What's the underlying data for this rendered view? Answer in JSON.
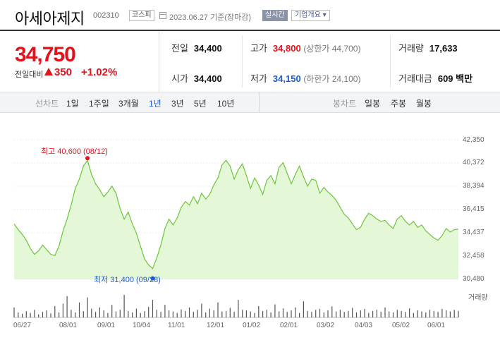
{
  "header": {
    "stock_name": "아세아제지",
    "stock_code": "002310",
    "market": "코스피",
    "date_text": "2023.06.27 기준(장마감)",
    "realtime_label": "실시간",
    "company_label": "기업개요 ▾"
  },
  "price": {
    "current": "34,750",
    "diff_label": "전일대비",
    "diff_value": "350",
    "diff_pct": "+1.02%"
  },
  "info": {
    "prev_label": "전일",
    "prev_value": "34,400",
    "open_label": "시가",
    "open_value": "34,400",
    "high_label": "고가",
    "high_value": "34,800",
    "high_sub": "(상한가 44,700)",
    "low_label": "저가",
    "low_value": "34,150",
    "low_sub": "(하한가 24,100)",
    "vol_label": "거래량",
    "vol_value": "17,633",
    "amount_label": "거래대금",
    "amount_value": "609 백만"
  },
  "periods": {
    "line_title": "선차트",
    "line_items": [
      "1일",
      "1주일",
      "3개월",
      "1년",
      "3년",
      "5년",
      "10년"
    ],
    "active": "1년",
    "candle_title": "봉차트",
    "candle_items": [
      "일봉",
      "주봉",
      "월봉"
    ]
  },
  "colors": {
    "up": "#e4131b",
    "down": "#1a5bd6",
    "line": "#6cc73a",
    "area": "#e4f7d6",
    "volume": "#555555"
  },
  "chart_data": {
    "type": "area",
    "y_ticks": [
      "42,350",
      "40,372",
      "38,394",
      "36,415",
      "34,437",
      "32,458",
      "30,480"
    ],
    "ylim": [
      30480,
      42350
    ],
    "x_ticks": [
      "06/27",
      "08/01",
      "09/01",
      "10/04",
      "11/01",
      "12/01",
      "01/02",
      "02/01",
      "03/02",
      "04/03",
      "05/02",
      "06/01"
    ],
    "high_label": "최고 40,600 (08/12)",
    "low_label": "최저 31,400 (09/28)",
    "volume_label": "거래량",
    "values": [
      35200,
      34700,
      34300,
      33800,
      33100,
      32600,
      32900,
      33400,
      33000,
      32600,
      32500,
      33300,
      34600,
      35600,
      36800,
      38200,
      39000,
      40100,
      40600,
      39400,
      38600,
      38100,
      37500,
      37900,
      38400,
      37800,
      36500,
      35600,
      36200,
      35200,
      34400,
      33300,
      32200,
      31700,
      31400,
      32300,
      33400,
      34800,
      35600,
      35100,
      35700,
      36600,
      37100,
      36800,
      37500,
      36900,
      37800,
      37300,
      37700,
      38500,
      39100,
      40200,
      40600,
      40100,
      39000,
      39800,
      40300,
      39300,
      38200,
      39100,
      38500,
      37700,
      38900,
      39300,
      38600,
      40000,
      40400,
      39500,
      38600,
      39400,
      40100,
      39200,
      38400,
      39000,
      38900,
      37800,
      38300,
      37900,
      37600,
      37200,
      36600,
      36000,
      35700,
      35200,
      34700,
      34900,
      35600,
      36100,
      35900,
      35600,
      35400,
      35500,
      35100,
      34800,
      35600,
      35900,
      35400,
      35100,
      35400,
      34900,
      35100,
      34600,
      34300,
      34000,
      33800,
      34200,
      34800,
      34500,
      34700,
      34750
    ],
    "volumes": [
      40,
      20,
      15,
      25,
      18,
      30,
      12,
      22,
      28,
      16,
      45,
      20,
      55,
      85,
      30,
      20,
      60,
      25,
      80,
      35,
      22,
      40,
      28,
      18,
      50,
      24,
      30,
      90,
      26,
      20,
      35,
      18,
      25,
      42,
      70,
      30,
      22,
      50,
      28,
      24,
      18,
      32,
      26,
      40,
      22,
      30,
      55,
      20,
      35,
      28,
      60,
      24,
      26,
      38,
      22,
      70,
      30,
      28,
      24,
      18,
      45,
      26,
      30,
      20,
      52,
      24,
      36,
      22,
      28,
      40,
      18,
      64,
      26,
      22,
      30,
      34,
      20,
      28,
      44,
      24,
      30,
      22,
      26,
      38,
      20,
      28,
      34,
      18,
      26,
      30,
      22,
      40,
      24,
      20,
      30,
      26,
      22,
      36,
      18,
      28,
      24,
      20,
      30,
      26,
      22,
      34,
      28,
      24,
      30,
      26
    ]
  }
}
